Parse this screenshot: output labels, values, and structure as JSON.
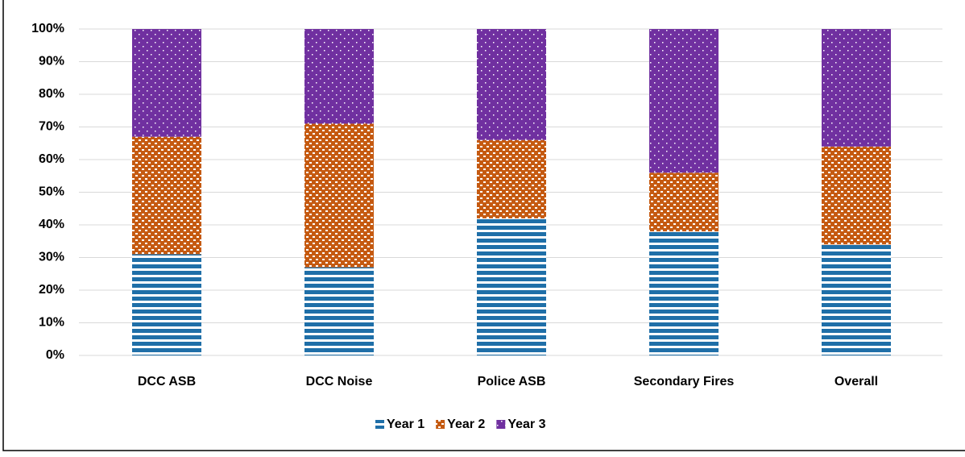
{
  "chart_data": {
    "type": "stacked_bar",
    "categories": [
      "DCC ASB",
      "DCC Noise",
      "Police ASB",
      "Secondary Fires",
      "Overall"
    ],
    "series": [
      {
        "name": "Year 1",
        "color": "#1f6fa8",
        "values": [
          31,
          27,
          42,
          38,
          34
        ]
      },
      {
        "name": "Year 2",
        "color": "#c55a11",
        "values": [
          36,
          44,
          24,
          18,
          30
        ]
      },
      {
        "name": "Year 3",
        "color": "#7030a0",
        "values": [
          33,
          29,
          34,
          44,
          36
        ]
      }
    ],
    "ylim": [
      0,
      100
    ],
    "yticks": [
      {
        "value": 0,
        "label": "0%"
      },
      {
        "value": 10,
        "label": "10%"
      },
      {
        "value": 20,
        "label": "20%"
      },
      {
        "value": 30,
        "label": "30%"
      },
      {
        "value": 40,
        "label": "40%"
      },
      {
        "value": 50,
        "label": "50%"
      },
      {
        "value": 60,
        "label": "60%"
      },
      {
        "value": 70,
        "label": "70%"
      },
      {
        "value": 80,
        "label": "80%"
      },
      {
        "value": 90,
        "label": "90%"
      },
      {
        "value": 100,
        "label": "100%"
      }
    ],
    "grid": true,
    "legend": "bottom"
  }
}
